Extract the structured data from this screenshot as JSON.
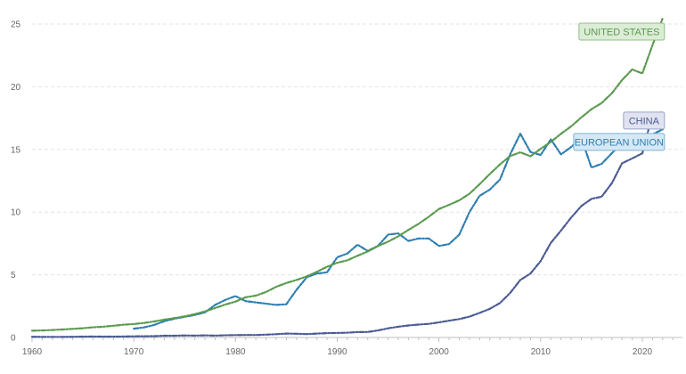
{
  "chart_data": {
    "type": "line",
    "title": "",
    "xlabel": "",
    "ylabel": "",
    "xlim": [
      1960,
      2024
    ],
    "ylim": [
      0,
      26
    ],
    "x_ticks": [
      1960,
      1970,
      1980,
      1990,
      2000,
      2010,
      2020
    ],
    "y_ticks": [
      0,
      5,
      10,
      15,
      20,
      25
    ],
    "grid": {
      "horizontal": true,
      "vertical": false
    },
    "series": [
      {
        "name": "UNITED STATES",
        "color": "#5a9a4f",
        "label_bg": "#dcecd7",
        "label_border": "#8fbf84",
        "label_text_color": "#5a9a4f",
        "x": [
          1960,
          1961,
          1962,
          1963,
          1964,
          1965,
          1966,
          1967,
          1968,
          1969,
          1970,
          1971,
          1972,
          1973,
          1974,
          1975,
          1976,
          1977,
          1978,
          1979,
          1980,
          1981,
          1982,
          1983,
          1984,
          1985,
          1986,
          1987,
          1988,
          1989,
          1990,
          1991,
          1992,
          1993,
          1994,
          1995,
          1996,
          1997,
          1998,
          1999,
          2000,
          2001,
          2002,
          2003,
          2004,
          2005,
          2006,
          2007,
          2008,
          2009,
          2010,
          2011,
          2012,
          2013,
          2014,
          2015,
          2016,
          2017,
          2018,
          2019,
          2020,
          2021,
          2022
        ],
        "y": [
          0.54,
          0.56,
          0.6,
          0.64,
          0.69,
          0.74,
          0.82,
          0.86,
          0.94,
          1.02,
          1.07,
          1.16,
          1.28,
          1.43,
          1.55,
          1.68,
          1.87,
          2.08,
          2.35,
          2.63,
          2.86,
          3.21,
          3.34,
          3.63,
          4.04,
          4.35,
          4.59,
          4.87,
          5.24,
          5.64,
          5.96,
          6.16,
          6.52,
          6.86,
          7.29,
          7.64,
          8.07,
          8.58,
          9.06,
          9.63,
          10.25,
          10.58,
          10.94,
          11.46,
          12.22,
          13.04,
          13.81,
          14.47,
          14.77,
          14.45,
          15.05,
          15.6,
          16.25,
          16.84,
          17.55,
          18.21,
          18.7,
          19.48,
          20.53,
          21.38,
          21.06,
          23.32,
          25.46
        ]
      },
      {
        "name": "EUROPEAN UNION",
        "color": "#2f7fb0",
        "label_bg": "#d6e8f5",
        "label_border": "#7fb2d6",
        "label_text_color": "#2f7fb0",
        "x": [
          1970,
          1971,
          1972,
          1973,
          1974,
          1975,
          1976,
          1977,
          1978,
          1979,
          1980,
          1981,
          1982,
          1983,
          1984,
          1985,
          1986,
          1987,
          1988,
          1989,
          1990,
          1991,
          1992,
          1993,
          1994,
          1995,
          1996,
          1997,
          1998,
          1999,
          2000,
          2001,
          2002,
          2003,
          2004,
          2005,
          2006,
          2007,
          2008,
          2009,
          2010,
          2011,
          2012,
          2013,
          2014,
          2015,
          2016,
          2017,
          2018,
          2019,
          2020,
          2021,
          2022
        ],
        "y": [
          0.7,
          0.8,
          1.0,
          1.3,
          1.5,
          1.65,
          1.8,
          2.0,
          2.6,
          3.0,
          3.3,
          2.9,
          2.8,
          2.7,
          2.6,
          2.65,
          3.8,
          4.8,
          5.1,
          5.2,
          6.4,
          6.7,
          7.4,
          6.9,
          7.3,
          8.2,
          8.3,
          7.7,
          7.9,
          7.9,
          7.3,
          7.45,
          8.2,
          10.0,
          11.3,
          11.8,
          12.6,
          14.6,
          16.25,
          14.8,
          14.55,
          15.8,
          14.6,
          15.2,
          15.9,
          13.55,
          13.85,
          14.7,
          15.5,
          15.5,
          15.4,
          16.2,
          16.6
        ]
      },
      {
        "name": "CHINA",
        "color": "#4a5a94",
        "label_bg": "#e1e3f0",
        "label_border": "#9aa3c8",
        "label_text_color": "#4a5a94",
        "x": [
          1960,
          1961,
          1962,
          1963,
          1964,
          1965,
          1966,
          1967,
          1968,
          1969,
          1970,
          1971,
          1972,
          1973,
          1974,
          1975,
          1976,
          1977,
          1978,
          1979,
          1980,
          1981,
          1982,
          1983,
          1984,
          1985,
          1986,
          1987,
          1988,
          1989,
          1990,
          1991,
          1992,
          1993,
          1994,
          1995,
          1996,
          1997,
          1998,
          1999,
          2000,
          2001,
          2002,
          2003,
          2004,
          2005,
          2006,
          2007,
          2008,
          2009,
          2010,
          2011,
          2012,
          2013,
          2014,
          2015,
          2016,
          2017,
          2018,
          2019,
          2020,
          2021,
          2022
        ],
        "y": [
          0.06,
          0.05,
          0.05,
          0.05,
          0.06,
          0.07,
          0.08,
          0.07,
          0.07,
          0.08,
          0.09,
          0.1,
          0.11,
          0.14,
          0.14,
          0.16,
          0.15,
          0.17,
          0.15,
          0.18,
          0.19,
          0.2,
          0.2,
          0.23,
          0.26,
          0.31,
          0.3,
          0.27,
          0.31,
          0.35,
          0.36,
          0.38,
          0.43,
          0.44,
          0.56,
          0.73,
          0.86,
          0.96,
          1.03,
          1.09,
          1.21,
          1.34,
          1.47,
          1.66,
          1.96,
          2.29,
          2.75,
          3.55,
          4.59,
          5.1,
          6.09,
          7.55,
          8.53,
          9.57,
          10.48,
          11.06,
          11.23,
          12.31,
          13.89,
          14.28,
          14.69,
          17.82,
          17.96
        ]
      }
    ],
    "labels": [
      {
        "series_index": 0,
        "text": "UNITED STATES",
        "anchor_x": 2022,
        "anchor_y": 24.4
      },
      {
        "series_index": 2,
        "text": "CHINA",
        "anchor_x": 2022,
        "anchor_y": 17.3
      },
      {
        "series_index": 1,
        "text": "EUROPEAN UNION",
        "anchor_x": 2022,
        "anchor_y": 15.6
      }
    ]
  }
}
